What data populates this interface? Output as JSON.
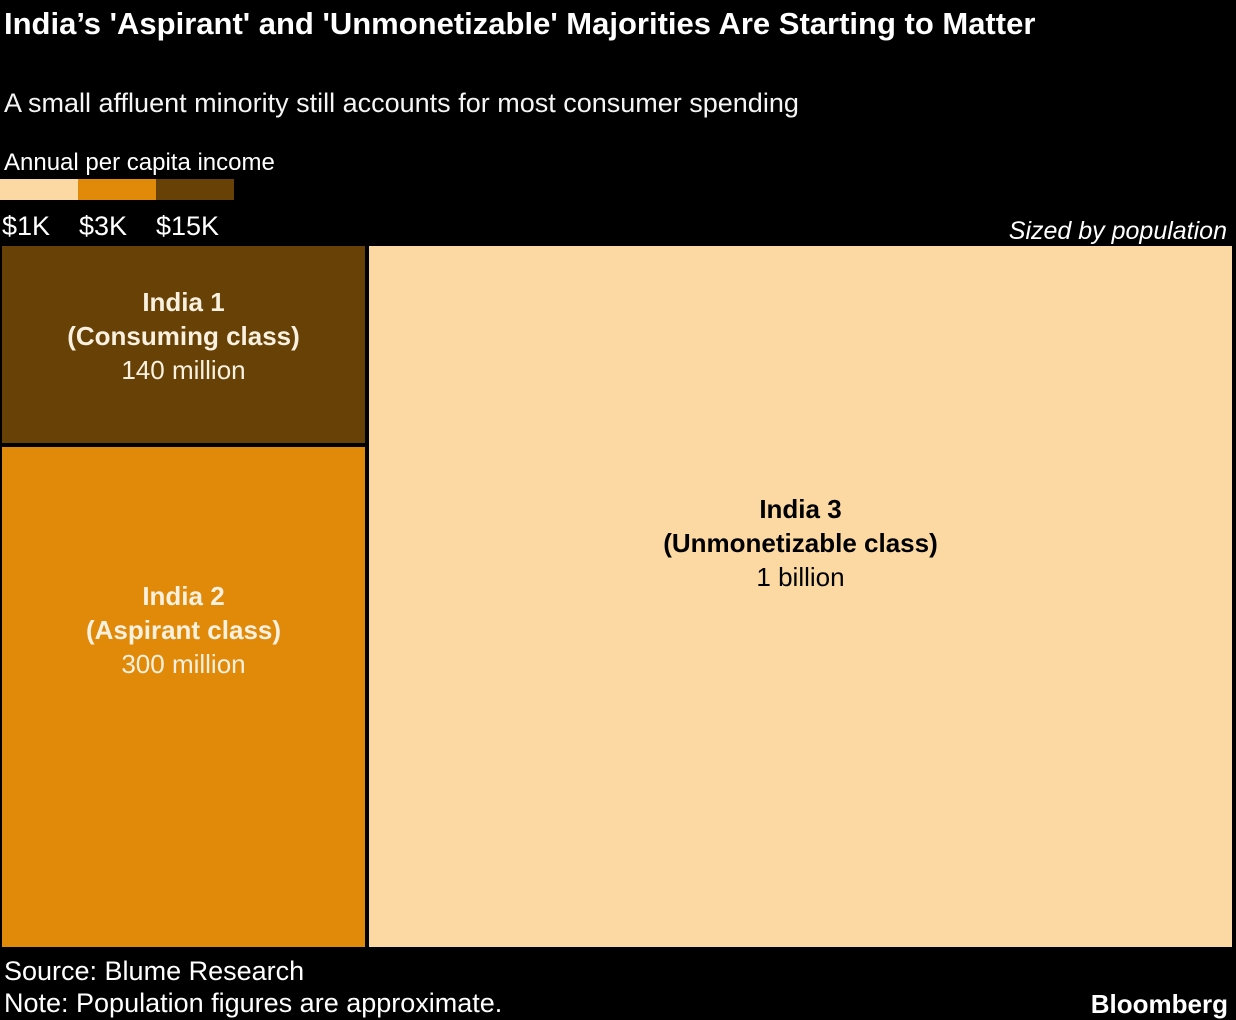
{
  "chart_data": {
    "type": "treemap",
    "title": "India’s 'Aspirant' and 'Unmonetizable' Majorities Are Starting to Matter",
    "subtitle": "A small affluent minority still accounts for most consumer spending",
    "sized_by_note": "Sized by population",
    "legend": {
      "title": "Annual per capita income",
      "items": [
        {
          "label": "$1K",
          "color": "#FCD9A2"
        },
        {
          "label": "$3K",
          "color": "#E18908"
        },
        {
          "label": "$15K",
          "color": "#684107"
        }
      ]
    },
    "cells": [
      {
        "name": "India 1",
        "segment": "(Consuming class)",
        "population_label": "140 million",
        "population": 140000000,
        "per_capita_income": "$15K",
        "color": "#684107",
        "text_color": "#F8F1DF"
      },
      {
        "name": "India 2",
        "segment": "(Aspirant class)",
        "population_label": "300 million",
        "population": 300000000,
        "per_capita_income": "$3K",
        "color": "#E18908",
        "text_color": "#F8F1DF"
      },
      {
        "name": "India 3",
        "segment": "(Unmonetizable class)",
        "population_label": "1 billion",
        "population": 1000000000,
        "per_capita_income": "$1K",
        "color": "#FCD9A2",
        "text_color": "#000000"
      }
    ],
    "source": "Source: Blume Research",
    "note": "Note: Population figures are approximate.",
    "brand": "Bloomberg",
    "layout": {
      "background": "#000000",
      "legend_position": "top-left",
      "grid": false
    }
  }
}
